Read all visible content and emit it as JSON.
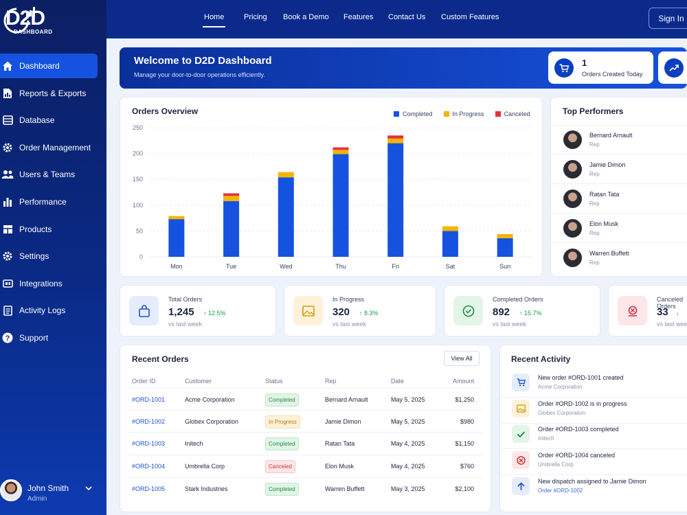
{
  "app": {
    "logo_text": "D2D",
    "logo_sub": "DASHBOARD"
  },
  "topnav": {
    "items": [
      "Home",
      "Pricing",
      "Book a Demo",
      "Features",
      "Contact Us",
      "Custom Features"
    ],
    "active": "Home",
    "signin_label": "Sign In"
  },
  "sidebar": {
    "items": [
      {
        "label": "Dashboard",
        "icon": "home-icon",
        "active": true
      },
      {
        "label": "Reports & Exports",
        "icon": "report-icon"
      },
      {
        "label": "Database",
        "icon": "database-icon"
      },
      {
        "label": "Order Management",
        "icon": "gear-icon"
      },
      {
        "label": "Users & Teams",
        "icon": "users-icon"
      },
      {
        "label": "Performance",
        "icon": "bar-chart-icon"
      },
      {
        "label": "Products",
        "icon": "products-icon"
      },
      {
        "label": "Settings",
        "icon": "settings-icon"
      },
      {
        "label": "Integrations",
        "icon": "integrations-icon"
      },
      {
        "label": "Activity Logs",
        "icon": "logs-icon"
      },
      {
        "label": "Support",
        "icon": "help-icon"
      }
    ],
    "user": {
      "name": "John Smith",
      "role": "Admin"
    }
  },
  "banner": {
    "title": "Welcome to D2D Dashboard",
    "subtitle": "Manage your door-to-door operations efficiently.",
    "stat": {
      "value": "1",
      "label": "Orders Created Today"
    }
  },
  "chart_title": "Orders Overview",
  "chart_data": {
    "type": "bar",
    "stacked": true,
    "categories": [
      "Mon",
      "Tue",
      "Wed",
      "Thu",
      "Fri",
      "Sat",
      "Sun"
    ],
    "series": [
      {
        "name": "Completed",
        "color": "#1652e0",
        "values": [
          73,
          108,
          154,
          199,
          220,
          50,
          36
        ]
      },
      {
        "name": "In Progress",
        "color": "#f5b400",
        "values": [
          6,
          10,
          10,
          8,
          9,
          9,
          8
        ]
      },
      {
        "name": "Canceled",
        "color": "#e4303d",
        "values": [
          0,
          5,
          0,
          5,
          6,
          0,
          0
        ]
      }
    ],
    "ylim": [
      0,
      250
    ],
    "yticks": [
      0,
      50,
      100,
      150,
      200,
      250
    ],
    "legend": "top-right",
    "grid": true
  },
  "top_performers": {
    "title": "Top Performers",
    "items": [
      {
        "name": "Bernard Arnault",
        "role": "Rep"
      },
      {
        "name": "Jamie Dimon",
        "role": "Rep"
      },
      {
        "name": "Ratan Tata",
        "role": "Rep"
      },
      {
        "name": "Elon Musk",
        "role": "Rep"
      },
      {
        "name": "Warren Buffett",
        "role": "Rep"
      }
    ]
  },
  "kpis": [
    {
      "label": "Total Orders",
      "value": "1,245",
      "change": "12.5%",
      "direction": "up",
      "sub": "vs last week",
      "icon": "bag-icon"
    },
    {
      "label": "In Progress",
      "value": "320",
      "change": "8.3%",
      "direction": "up",
      "sub": "vs last week",
      "icon": "image-icon"
    },
    {
      "label": "Completed Orders",
      "value": "892",
      "change": "15.7%",
      "direction": "up",
      "sub": "vs last week",
      "icon": "check-circle-icon"
    },
    {
      "label": "Canceled Orders",
      "value": "33",
      "change": "",
      "direction": "down",
      "sub": "vs last week",
      "icon": "cancel-icon"
    }
  ],
  "recent_orders": {
    "title": "Recent Orders",
    "view_all": "View All",
    "columns": [
      "Order ID",
      "Customer",
      "Status",
      "Rep",
      "Date",
      "Amount"
    ],
    "rows": [
      {
        "id": "#ORD-1001",
        "customer": "Acme Corporation",
        "status": "Completed",
        "rep": "Bernard Arnault",
        "date": "May 5, 2025",
        "amount": "$1,250"
      },
      {
        "id": "#ORD-1002",
        "customer": "Globex Corporation",
        "status": "In Progress",
        "rep": "Jamie Dimon",
        "date": "May 5, 2025",
        "amount": "$980"
      },
      {
        "id": "#ORD-1003",
        "customer": "Initech",
        "status": "Completed",
        "rep": "Ratan Tata",
        "date": "May 4, 2025",
        "amount": "$1,150"
      },
      {
        "id": "#ORD-1004",
        "customer": "Umbrella Corp",
        "status": "Canceled",
        "rep": "Elon Musk",
        "date": "May 4, 2025",
        "amount": "$760"
      },
      {
        "id": "#ORD-1005",
        "customer": "Stark Industries",
        "status": "Completed",
        "rep": "Warren Buffett",
        "date": "May 3, 2025",
        "amount": "$2,100"
      }
    ]
  },
  "recent_activity": {
    "title": "Recent Activity",
    "items": [
      {
        "text": "New order #ORD-1001 created",
        "sub": "Acme Corporation",
        "icon": "cart-icon",
        "tone": "blue"
      },
      {
        "text": "Order #ORD-1002 is in progress",
        "sub": "Globex Corporation",
        "icon": "image-icon",
        "tone": "yellow"
      },
      {
        "text": "Order #ORD-1003 completed",
        "sub": "Initech",
        "icon": "check-icon",
        "tone": "green"
      },
      {
        "text": "Order #ORD-1004 canceled",
        "sub": "Umbrella Corp",
        "icon": "cancel-icon",
        "tone": "red"
      },
      {
        "text": "New dispatch assigned to Jamie Dimon",
        "sub": "Order #ORD-1002",
        "icon": "arrow-up-icon",
        "tone": "blue"
      }
    ]
  }
}
